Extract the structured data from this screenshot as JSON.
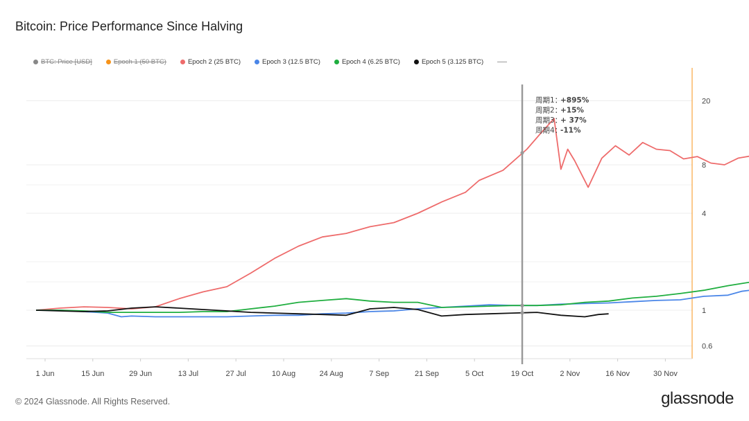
{
  "title": "Bitcoin: Price Performance Since Halving",
  "legend": [
    {
      "label": "BTC: Price [USD]",
      "color": "#888888",
      "off": true
    },
    {
      "label": "Epoch 1 (50 BTC)",
      "color": "#f7931a",
      "off": true
    },
    {
      "label": "Epoch 2 (25 BTC)",
      "color": "#ee6b6b",
      "off": false
    },
    {
      "label": "Epoch 3 (12.5 BTC)",
      "color": "#4a86e8",
      "off": false
    },
    {
      "label": "Epoch 4 (6.25 BTC)",
      "color": "#1fae3f",
      "off": false
    },
    {
      "label": "Epoch 5 (3.125 BTC)",
      "color": "#111111",
      "off": false
    }
  ],
  "annotations": [
    {
      "label": "周期1：",
      "value": "+895%"
    },
    {
      "label": "周期2：",
      "value": "+15%"
    },
    {
      "label": "周期3：",
      "value": "+ 37%"
    },
    {
      "label": "周期4：",
      "value": "-11%"
    }
  ],
  "footer": "© 2024 Glassnode. All Rights Reserved.",
  "brand": "glassnode",
  "chart_data": {
    "type": "line",
    "y_scale": "log",
    "ylim": [
      0.5,
      32
    ],
    "y_ticks": [
      {
        "label": "0.6",
        "value": 0.6
      },
      {
        "label": "1",
        "value": 1
      },
      {
        "label": "4",
        "value": 4
      },
      {
        "label": "8",
        "value": 8
      },
      {
        "label": "20",
        "value": 20
      }
    ],
    "x_ticks": [
      "1 Jun",
      "15 Jun",
      "29 Jun",
      "13 Jul",
      "27 Jul",
      "10 Aug",
      "24 Aug",
      "7 Sep",
      "21 Sep",
      "5 Oct",
      "19 Oct",
      "2 Nov",
      "16 Nov",
      "30 Nov"
    ],
    "x_unit": "days after halving-equivalent start (1 Jun = day 0)",
    "vertical_marker_x": "19 Oct",
    "grid": true,
    "series": [
      {
        "name": "Epoch 2 (25 BTC)",
        "color": "#ee6b6b",
        "points": [
          [
            0,
            1
          ],
          [
            7,
            1.03
          ],
          [
            14,
            1.05
          ],
          [
            21,
            1.04
          ],
          [
            28,
            1.02
          ],
          [
            35,
            1.05
          ],
          [
            42,
            1.18
          ],
          [
            49,
            1.3
          ],
          [
            56,
            1.4
          ],
          [
            63,
            1.7
          ],
          [
            70,
            2.1
          ],
          [
            77,
            2.5
          ],
          [
            84,
            2.85
          ],
          [
            91,
            3.0
          ],
          [
            98,
            3.3
          ],
          [
            105,
            3.5
          ],
          [
            112,
            4.0
          ],
          [
            119,
            4.7
          ],
          [
            126,
            5.4
          ],
          [
            130,
            6.4
          ],
          [
            137,
            7.4
          ],
          [
            144,
            10.0
          ],
          [
            148,
            12.5
          ],
          [
            152,
            15.5
          ],
          [
            154,
            7.5
          ],
          [
            156,
            10.0
          ],
          [
            158,
            8.5
          ],
          [
            162,
            5.8
          ],
          [
            166,
            8.8
          ],
          [
            170,
            10.5
          ],
          [
            174,
            9.2
          ],
          [
            178,
            11.0
          ],
          [
            182,
            10.0
          ],
          [
            186,
            9.8
          ],
          [
            190,
            8.7
          ],
          [
            194,
            9.0
          ],
          [
            198,
            8.2
          ],
          [
            202,
            8.0
          ],
          [
            206,
            8.8
          ],
          [
            210,
            9.1
          ],
          [
            214,
            9.0
          ],
          [
            218,
            9.3
          ],
          [
            222,
            9.1
          ],
          [
            226,
            8.7
          ],
          [
            230,
            8.4
          ],
          [
            232,
            7.9
          ],
          [
            235,
            8.0
          ]
        ]
      },
      {
        "name": "Epoch 3 (12.5 BTC)",
        "color": "#4a86e8",
        "points": [
          [
            0,
            1
          ],
          [
            7,
            1.0
          ],
          [
            14,
            0.98
          ],
          [
            21,
            0.96
          ],
          [
            25,
            0.91
          ],
          [
            28,
            0.92
          ],
          [
            35,
            0.91
          ],
          [
            42,
            0.91
          ],
          [
            49,
            0.91
          ],
          [
            56,
            0.91
          ],
          [
            63,
            0.92
          ],
          [
            70,
            0.93
          ],
          [
            77,
            0.93
          ],
          [
            84,
            0.95
          ],
          [
            91,
            0.96
          ],
          [
            98,
            0.98
          ],
          [
            105,
            0.99
          ],
          [
            112,
            1.02
          ],
          [
            119,
            1.04
          ],
          [
            126,
            1.06
          ],
          [
            133,
            1.08
          ],
          [
            140,
            1.07
          ],
          [
            147,
            1.07
          ],
          [
            154,
            1.09
          ],
          [
            161,
            1.1
          ],
          [
            168,
            1.11
          ],
          [
            175,
            1.13
          ],
          [
            182,
            1.15
          ],
          [
            189,
            1.16
          ],
          [
            196,
            1.22
          ],
          [
            203,
            1.24
          ],
          [
            207,
            1.31
          ],
          [
            212,
            1.35
          ],
          [
            215,
            1.25
          ],
          [
            220,
            1.22
          ],
          [
            224,
            1.18
          ],
          [
            228,
            1.2
          ],
          [
            232,
            1.23
          ],
          [
            235,
            1.24
          ]
        ]
      },
      {
        "name": "Epoch 4 (6.25 BTC)",
        "color": "#1fae3f",
        "points": [
          [
            0,
            1
          ],
          [
            7,
            1.0
          ],
          [
            14,
            0.99
          ],
          [
            21,
            0.97
          ],
          [
            28,
            0.97
          ],
          [
            35,
            0.97
          ],
          [
            42,
            0.97
          ],
          [
            49,
            0.98
          ],
          [
            56,
            0.98
          ],
          [
            63,
            1.02
          ],
          [
            70,
            1.06
          ],
          [
            77,
            1.12
          ],
          [
            84,
            1.15
          ],
          [
            91,
            1.18
          ],
          [
            98,
            1.14
          ],
          [
            105,
            1.12
          ],
          [
            112,
            1.12
          ],
          [
            119,
            1.04
          ],
          [
            126,
            1.05
          ],
          [
            133,
            1.06
          ],
          [
            140,
            1.07
          ],
          [
            147,
            1.07
          ],
          [
            154,
            1.08
          ],
          [
            161,
            1.12
          ],
          [
            168,
            1.14
          ],
          [
            175,
            1.19
          ],
          [
            182,
            1.22
          ],
          [
            189,
            1.27
          ],
          [
            196,
            1.33
          ],
          [
            203,
            1.42
          ],
          [
            210,
            1.5
          ],
          [
            217,
            1.48
          ],
          [
            224,
            1.55
          ],
          [
            231,
            1.52
          ],
          [
            235,
            1.55
          ]
        ]
      },
      {
        "name": "Epoch 5 (3.125 BTC)",
        "color": "#111111",
        "points": [
          [
            0,
            1
          ],
          [
            7,
            0.99
          ],
          [
            14,
            0.98
          ],
          [
            21,
            0.99
          ],
          [
            28,
            1.03
          ],
          [
            35,
            1.05
          ],
          [
            42,
            1.03
          ],
          [
            49,
            1.01
          ],
          [
            56,
            0.99
          ],
          [
            63,
            0.97
          ],
          [
            70,
            0.96
          ],
          [
            77,
            0.95
          ],
          [
            84,
            0.94
          ],
          [
            91,
            0.93
          ],
          [
            98,
            1.02
          ],
          [
            105,
            1.04
          ],
          [
            112,
            1.01
          ],
          [
            119,
            0.92
          ],
          [
            126,
            0.94
          ],
          [
            133,
            0.95
          ],
          [
            140,
            0.96
          ],
          [
            147,
            0.97
          ],
          [
            154,
            0.93
          ],
          [
            161,
            0.91
          ],
          [
            165,
            0.94
          ],
          [
            168,
            0.95
          ]
        ]
      }
    ]
  }
}
